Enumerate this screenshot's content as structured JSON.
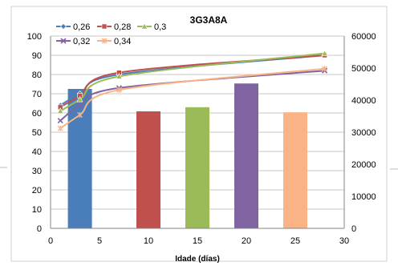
{
  "chart_data": {
    "type": "bar",
    "title": "3G3A8A",
    "xlabel": "Idade (días)",
    "ylabel": "",
    "y2label": "",
    "xlim": [
      0,
      30
    ],
    "x_ticks": [
      0,
      5,
      10,
      15,
      20,
      25,
      30
    ],
    "ylim": [
      0,
      100
    ],
    "y_ticks": [
      0,
      10,
      20,
      30,
      40,
      50,
      60,
      70,
      80,
      90,
      100
    ],
    "y2lim": [
      0,
      60000
    ],
    "y2_ticks": [
      0,
      10000,
      20000,
      30000,
      40000,
      50000,
      60000
    ],
    "grid": "horizontal",
    "legend_position": "top-left",
    "bars": {
      "axis": "right",
      "x": [
        3,
        10,
        15,
        20,
        25
      ],
      "values": [
        43500,
        36500,
        37800,
        45200,
        36200
      ],
      "colors": [
        "#4A7EBB",
        "#C0504D",
        "#9BBB59",
        "#8064A2",
        "#F9B384"
      ]
    },
    "series": [
      {
        "name": "0,26",
        "color": "#4A7EBB",
        "marker": "diamond",
        "axis": "left",
        "x": [
          1,
          3,
          7,
          28
        ],
        "values": [
          64,
          70,
          80,
          90
        ]
      },
      {
        "name": "0,28",
        "color": "#C0504D",
        "marker": "square",
        "axis": "left",
        "x": [
          1,
          3,
          7,
          28
        ],
        "values": [
          63,
          69,
          81,
          90
        ]
      },
      {
        "name": "0,3",
        "color": "#9BBB59",
        "marker": "triangle",
        "axis": "left",
        "x": [
          1,
          3,
          7,
          28
        ],
        "values": [
          61,
          67,
          79,
          91
        ]
      },
      {
        "name": "0,32",
        "color": "#8064A2",
        "marker": "x",
        "axis": "left",
        "x": [
          1,
          3,
          7,
          28
        ],
        "values": [
          56,
          64,
          73,
          82
        ]
      },
      {
        "name": "0,34",
        "color": "#F9B384",
        "marker": "star",
        "axis": "left",
        "x": [
          1,
          3,
          7,
          28
        ],
        "values": [
          52,
          59,
          72,
          83
        ]
      }
    ]
  }
}
